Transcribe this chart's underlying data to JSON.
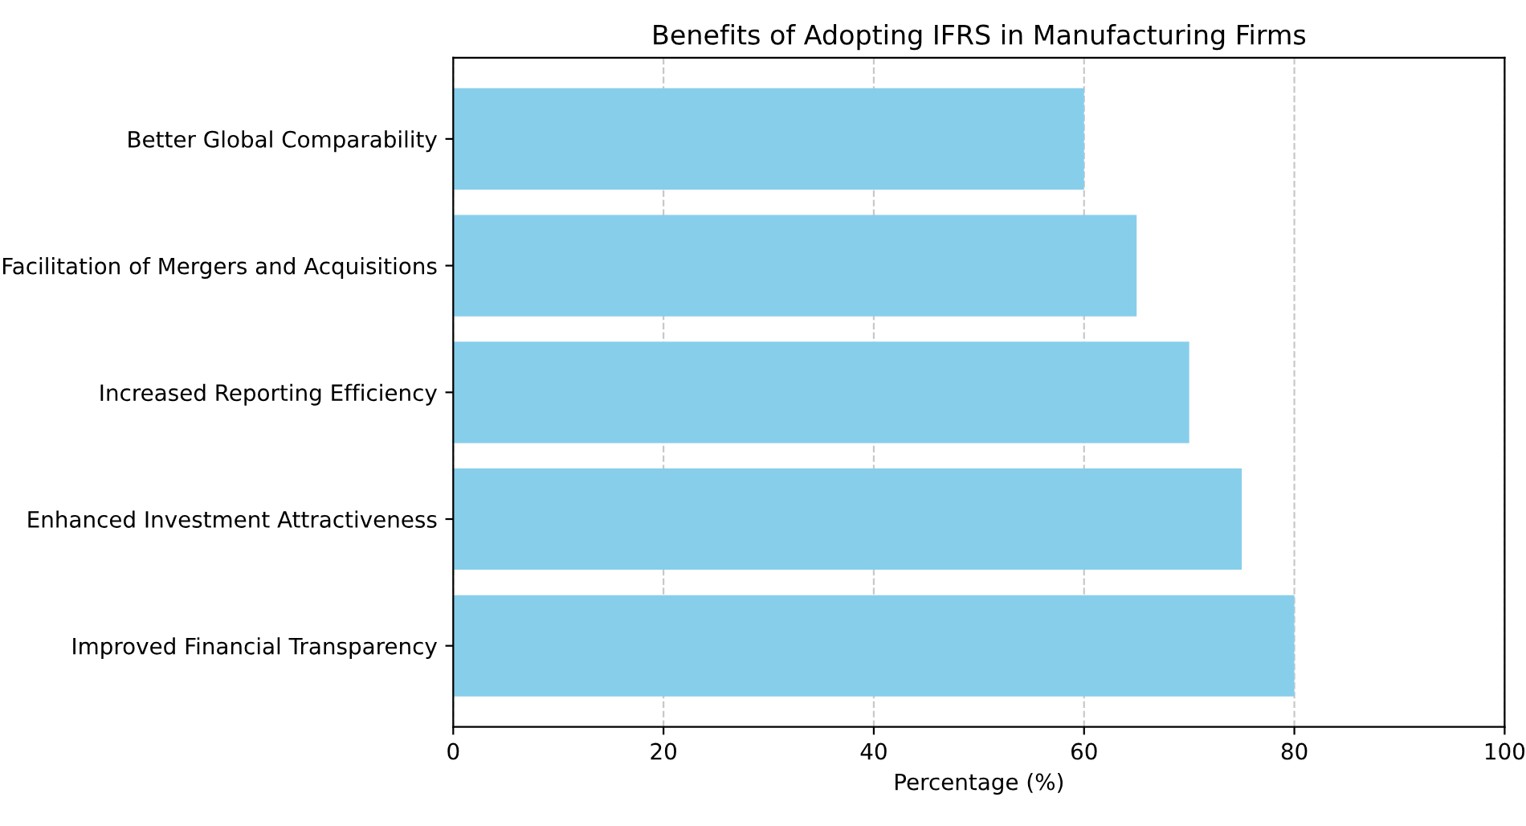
{
  "chart_data": {
    "type": "bar",
    "orientation": "horizontal",
    "title": "Benefits of Adopting IFRS in Manufacturing Firms",
    "xlabel": "Percentage (%)",
    "categories": [
      "Better Global Comparability",
      "Facilitation of Mergers and Acquisitions",
      "Increased Reporting Efficiency",
      "Enhanced Investment Attractiveness",
      "Improved Financial Transparency"
    ],
    "values": [
      60,
      65,
      70,
      75,
      80
    ],
    "color": "#87ceeb",
    "xlim": [
      0,
      100
    ],
    "xticks": [
      0,
      20,
      40,
      60,
      80,
      100
    ],
    "grid": "x",
    "legend": false
  }
}
